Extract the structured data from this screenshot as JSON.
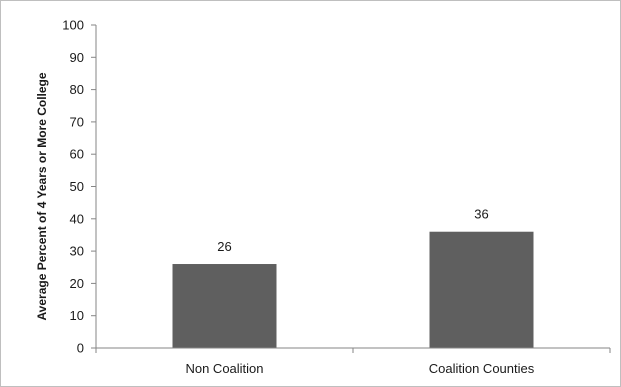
{
  "chart_data": {
    "type": "bar",
    "title": "",
    "xlabel": "",
    "ylabel": "Average Percent of 4 Years or More College",
    "categories": [
      "Non Coalition",
      "Coalition Counties"
    ],
    "values": [
      26,
      36
    ],
    "data_labels": [
      "26",
      "36"
    ],
    "ylim": [
      0,
      100
    ],
    "yticks": [
      0,
      10,
      20,
      30,
      40,
      50,
      60,
      70,
      80,
      90,
      100
    ],
    "grid": false,
    "legend": "none",
    "bar_color": "#5f5f5f",
    "axis_color": "#868686"
  }
}
